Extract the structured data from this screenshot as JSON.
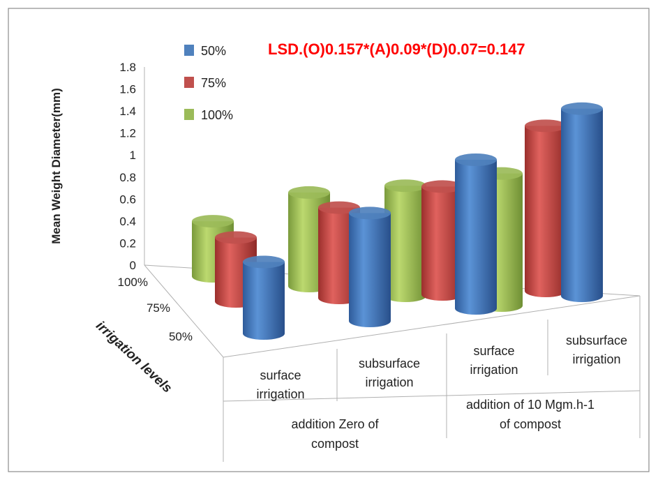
{
  "chart_data": {
    "type": "bar",
    "style": "3d-cylinder",
    "annotation": "LSD.(O)0.157*(A)0.09*(D)0.07=0.147",
    "annotation_color": "#ff0000",
    "ylabel": "Mean Weight Diameter(mm)",
    "depth_axis_label": "irrigation levels",
    "ylim": [
      0,
      1.8
    ],
    "yticks": [
      "0",
      "0.2",
      "0.4",
      "0.6",
      "0.8",
      "1",
      "1.2",
      "1.4",
      "1.6",
      "1.8"
    ],
    "depth_ticks": [
      "100%",
      "75%",
      "50%"
    ],
    "categories": [
      "surface irrigation|addition Zero of compost",
      "subsurface irrigation|addition Zero of compost",
      "surface irrigation|addition of 10 Mgm.h-1 of compost",
      "subsurface irrigation|addition of 10 Mgm.h-1 of compost"
    ],
    "category_labels": [
      {
        "inner": [
          "surface",
          "irrigation"
        ]
      },
      {
        "inner": [
          "subsurface",
          "irrigation"
        ]
      },
      {
        "inner": [
          "surface",
          "irrigation"
        ]
      },
      {
        "inner": [
          "subsurface",
          "irrigation"
        ]
      }
    ],
    "groups": [
      {
        "lines": [
          "addition Zero of",
          "compost"
        ]
      },
      {
        "lines": [
          "addition of 10 Mgm.h-1",
          "of compost"
        ]
      }
    ],
    "legend_position": "top-left",
    "series": [
      {
        "name": "100%",
        "color": "#9bbb59",
        "values": [
          0.5,
          0.85,
          1.0,
          1.2
        ]
      },
      {
        "name": "75%",
        "color": "#c0504d",
        "values": [
          0.58,
          0.82,
          0.98,
          1.5
        ]
      },
      {
        "name": "50%",
        "color": "#4f81bd",
        "values": [
          0.65,
          0.98,
          1.35,
          1.7
        ]
      }
    ]
  }
}
